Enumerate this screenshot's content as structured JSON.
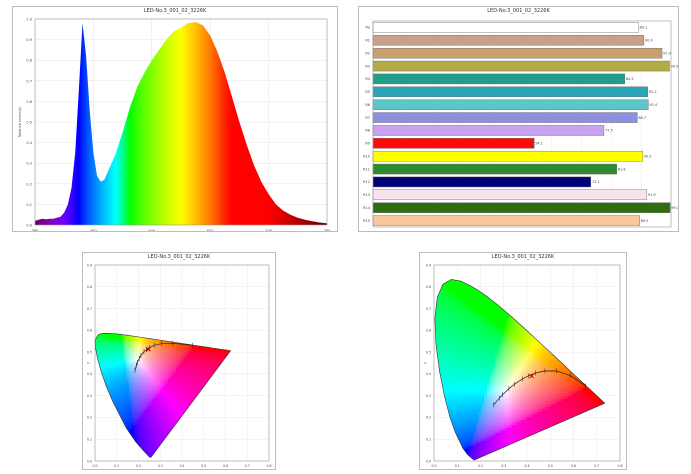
{
  "chart_data": [
    {
      "type": "area",
      "title": "LED-No.3_001_02_3226K",
      "xlabel": "",
      "ylabel": "Relative Intensity",
      "xlim": [
        380,
        780
      ],
      "ylim": [
        0,
        1.0
      ],
      "x_ticks": [
        "380",
        "460",
        "540",
        "620",
        "700",
        "780"
      ],
      "y_ticks": [
        "0.0",
        "0.1",
        "0.2",
        "0.3",
        "0.4",
        "0.5",
        "0.6",
        "0.7",
        "0.8",
        "0.9",
        "1.0"
      ],
      "x": [
        380,
        385,
        390,
        395,
        400,
        405,
        410,
        415,
        420,
        425,
        430,
        435,
        440,
        445,
        450,
        455,
        460,
        465,
        470,
        475,
        480,
        490,
        500,
        510,
        520,
        530,
        540,
        550,
        560,
        570,
        580,
        590,
        600,
        610,
        620,
        630,
        640,
        650,
        660,
        670,
        680,
        690,
        700,
        710,
        720,
        730,
        740,
        750,
        760,
        770,
        780
      ],
      "y": [
        0.02,
        0.025,
        0.03,
        0.028,
        0.03,
        0.03,
        0.035,
        0.04,
        0.06,
        0.1,
        0.18,
        0.35,
        0.65,
        0.98,
        0.82,
        0.55,
        0.35,
        0.24,
        0.21,
        0.22,
        0.26,
        0.34,
        0.45,
        0.57,
        0.67,
        0.74,
        0.8,
        0.85,
        0.9,
        0.94,
        0.96,
        0.98,
        0.985,
        0.97,
        0.92,
        0.84,
        0.74,
        0.62,
        0.5,
        0.39,
        0.29,
        0.21,
        0.15,
        0.1,
        0.07,
        0.05,
        0.035,
        0.025,
        0.018,
        0.012,
        0.008
      ]
    },
    {
      "type": "bar",
      "title": "LED-No.3_001_02_3226K",
      "orientation": "horizontal",
      "categories": [
        "Ra",
        "R1",
        "R2",
        "R3",
        "R4",
        "R5",
        "R6",
        "R7",
        "R8",
        "R9",
        "R10",
        "R11",
        "R12",
        "R13",
        "R14",
        "R15"
      ],
      "values": [
        89.1,
        90.9,
        97.0,
        99.5,
        84.5,
        92.2,
        92.4,
        88.7,
        77.5,
        54.1,
        90.5,
        81.8,
        73.1,
        91.9,
        99.7,
        89.5
      ],
      "value_labels": [
        "89.1",
        "90.9",
        "97.0",
        "99.5",
        "84.5",
        "92.2",
        "92.4",
        "88.7",
        "77.5",
        "54.1",
        "90.5",
        "81.8",
        "73.1",
        "91.9",
        "99.7",
        "89.5"
      ],
      "colors": [
        "#ffffff",
        "#c8a08a",
        "#c8a070",
        "#b4aa46",
        "#1f9e8a",
        "#29a4b8",
        "#5ec6c8",
        "#8f8fe0",
        "#c9a3f0",
        "#ff0a0a",
        "#ffff00",
        "#2e8b2e",
        "#00007a",
        "#f7e4ef",
        "#2e6e10",
        "#f8c89c"
      ],
      "xlim": [
        0,
        100
      ]
    },
    {
      "type": "scatter",
      "title": "LED-No.3_001_02_3226K",
      "xlabel": "",
      "ylabel": "y",
      "xlim": [
        0.0,
        0.8
      ],
      "ylim": [
        0.0,
        0.9
      ],
      "x_ticks": [
        "0.0",
        "0.1",
        "0.2",
        "0.3",
        "0.4",
        "0.5",
        "0.6",
        "0.7",
        "0.8"
      ],
      "y_ticks": [
        "0.0",
        "0.1",
        "0.2",
        "0.3",
        "0.4",
        "0.5",
        "0.6",
        "0.7",
        "0.8",
        "0.9"
      ],
      "point": {
        "x": 0.42,
        "y": 0.39
      }
    },
    {
      "type": "scatter",
      "title": "LED-No.3_001_02_3226K",
      "xlabel": "",
      "ylabel": "y",
      "xlim": [
        0.0,
        0.8
      ],
      "ylim": [
        0.0,
        0.9
      ],
      "x_ticks": [
        "0.0",
        "0.1",
        "0.2",
        "0.3",
        "0.4",
        "0.5",
        "0.6",
        "0.7",
        "0.8"
      ],
      "y_ticks": [
        "0.0",
        "0.1",
        "0.2",
        "0.3",
        "0.4",
        "0.5",
        "0.6",
        "0.7",
        "0.8",
        "0.9"
      ],
      "point": {
        "x": 0.42,
        "y": 0.39
      }
    }
  ]
}
